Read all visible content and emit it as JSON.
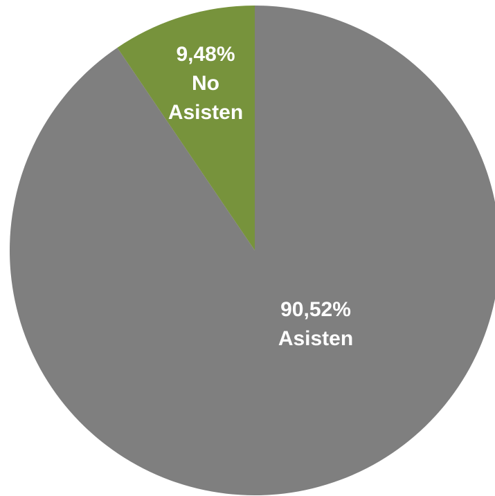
{
  "chart_data": {
    "type": "pie",
    "start_angle": "12 o'clock",
    "direction": "counterclockwise",
    "legend": "none",
    "slices": [
      {
        "value": 9.48,
        "percent_label": "9,48%",
        "label_lines": [
          "No",
          "Asisten"
        ],
        "color": "#77933c"
      },
      {
        "value": 90.52,
        "percent_label": "90,52%",
        "label_lines": [
          "Asisten"
        ],
        "color": "#7f7f7f"
      }
    ]
  }
}
